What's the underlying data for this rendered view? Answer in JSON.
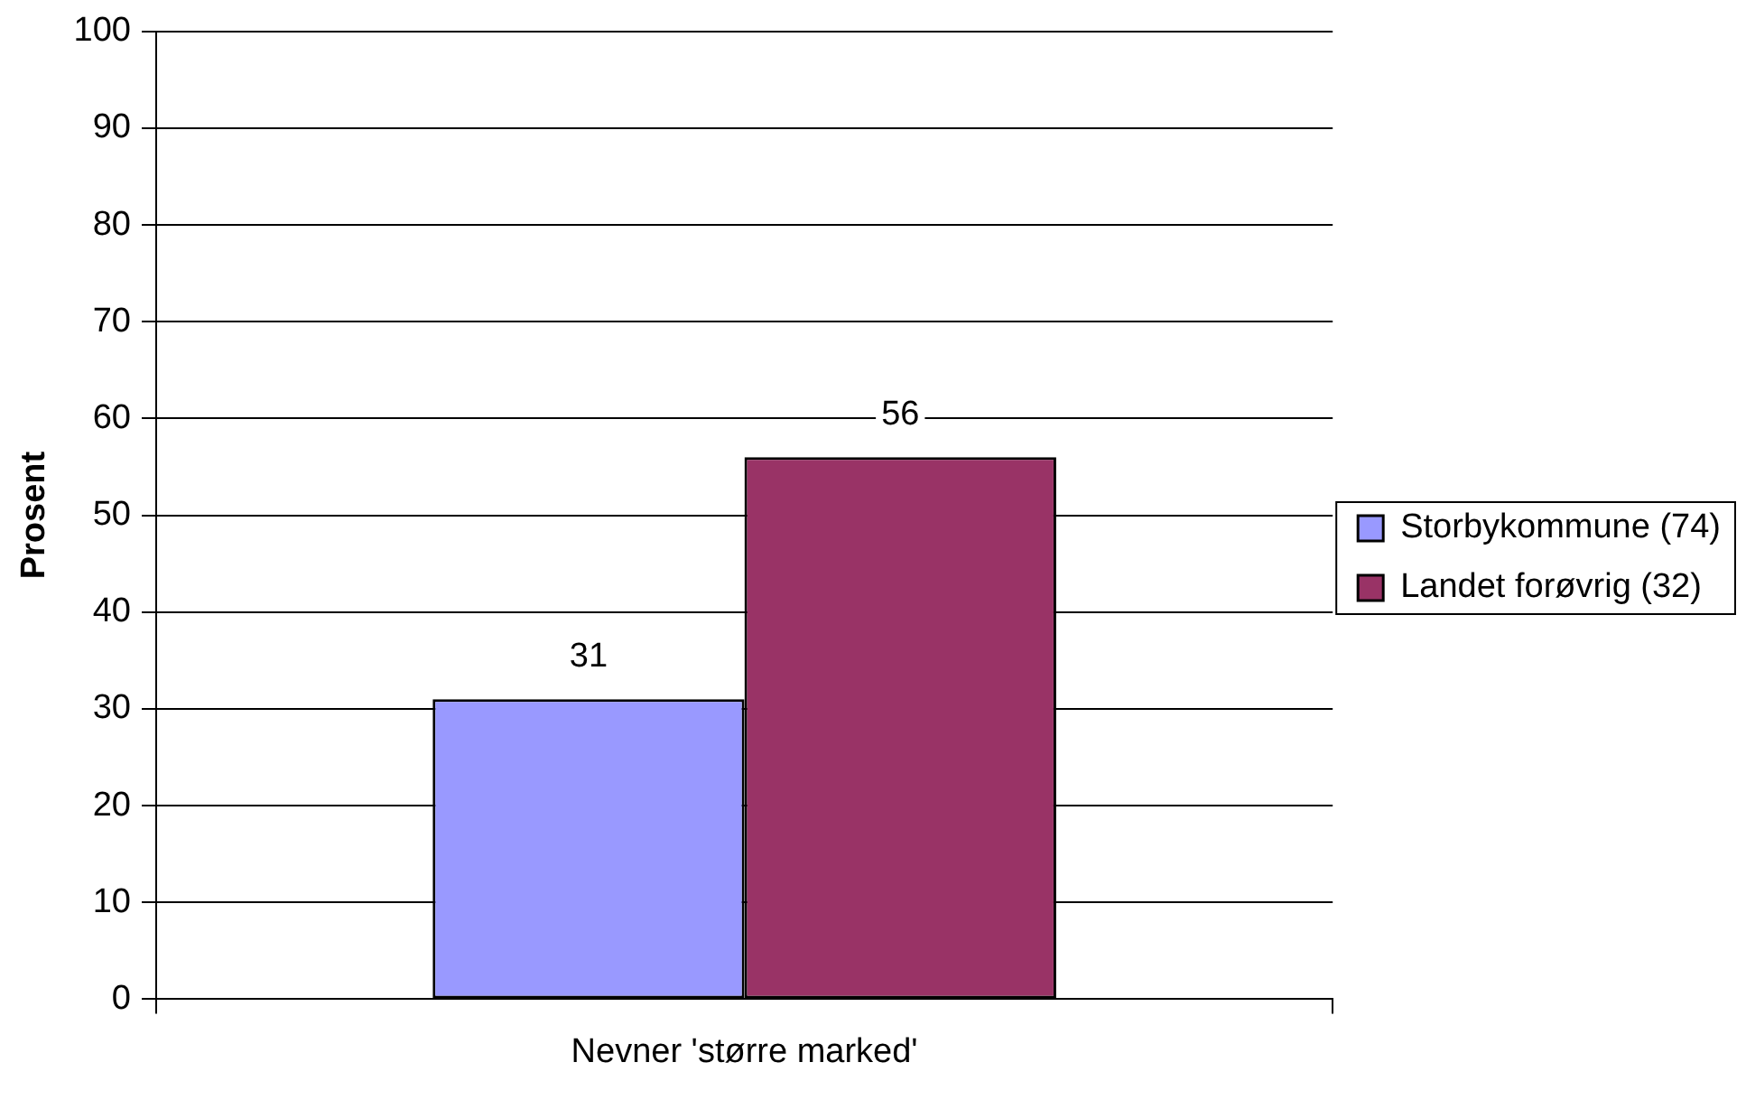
{
  "chart_data": {
    "type": "bar",
    "ylabel": "Prosent",
    "categories": [
      "Nevner 'større marked'"
    ],
    "series": [
      {
        "name": "Storbykommune (74)",
        "color": "#9999ff",
        "values": [
          31
        ]
      },
      {
        "name": "Landet forøvrig (32)",
        "color": "#993366",
        "values": [
          56
        ]
      }
    ],
    "ylim": [
      0,
      100
    ],
    "yticks": [
      0,
      10,
      20,
      30,
      40,
      50,
      60,
      70,
      80,
      90,
      100
    ],
    "grid": "y",
    "legend": "right",
    "data_labels": true
  }
}
